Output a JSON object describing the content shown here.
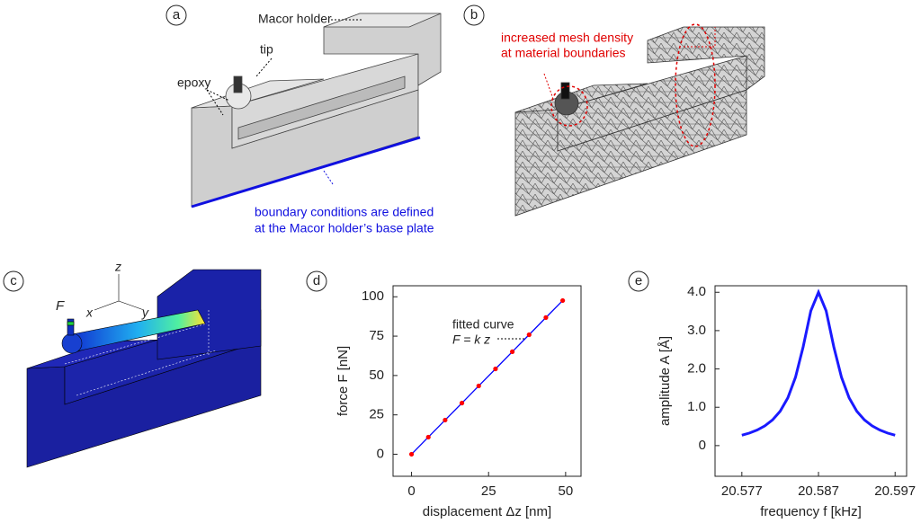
{
  "panels": {
    "a": {
      "label": "a",
      "macor_holder": "Macor holder",
      "tip": "tip",
      "epoxy": "epoxy",
      "boundary": [
        "boundary conditions are defined",
        "at the Macor holder’s base plate"
      ]
    },
    "b": {
      "label": "b",
      "mesh": [
        "increased mesh density",
        "at material boundaries"
      ]
    },
    "c": {
      "label": "c",
      "force": "F",
      "axes": {
        "x": "x",
        "y": "y",
        "z": "z"
      }
    }
  },
  "chart_data": [
    {
      "type": "line",
      "panel_label": "d",
      "x_label": "displacement Δz [nm]",
      "y_label": "force F [nN]",
      "annotation": [
        "fitted curve",
        "F = k z"
      ],
      "x": [
        0,
        5.45,
        10.9,
        16.35,
        21.8,
        27.25,
        32.7,
        38.15,
        43.6,
        49.05
      ],
      "values": [
        0,
        10.85,
        21.7,
        32.5,
        43.4,
        54.2,
        65.1,
        75.9,
        86.8,
        97.6
      ],
      "marker_color": "#ff0000",
      "line_color": "#0000ff",
      "xlim": [
        -6,
        55
      ],
      "ylim": [
        -14,
        107
      ],
      "xticks": [
        0,
        25,
        50
      ],
      "yticks": [
        0,
        25,
        50,
        75,
        100
      ]
    },
    {
      "type": "line",
      "panel_label": "e",
      "x_label": "frequency f [kHz]",
      "y_label": "amplitude A [Å]",
      "x": [
        20.577,
        20.578,
        20.579,
        20.58,
        20.581,
        20.582,
        20.583,
        20.584,
        20.585,
        20.586,
        20.587,
        20.588,
        20.589,
        20.59,
        20.591,
        20.592,
        20.593,
        20.594,
        20.595,
        20.596,
        20.597
      ],
      "values": [
        0.27,
        0.328,
        0.406,
        0.515,
        0.669,
        0.898,
        1.246,
        1.783,
        2.576,
        3.514,
        4.0,
        3.514,
        2.576,
        1.783,
        1.246,
        0.898,
        0.669,
        0.515,
        0.406,
        0.328,
        0.27
      ],
      "line_color": "#1a1aff",
      "xlim": [
        20.5735,
        20.5985
      ],
      "ylim": [
        -0.8,
        4.17
      ],
      "xticks": [
        20.577,
        20.587,
        20.597
      ],
      "yticks": [
        0,
        {
          "value": 1,
          "label": "1.0"
        },
        {
          "value": 2,
          "label": "2.0"
        },
        {
          "value": 3,
          "label": "3.0"
        },
        {
          "value": 4,
          "label": "4.0"
        }
      ]
    }
  ]
}
